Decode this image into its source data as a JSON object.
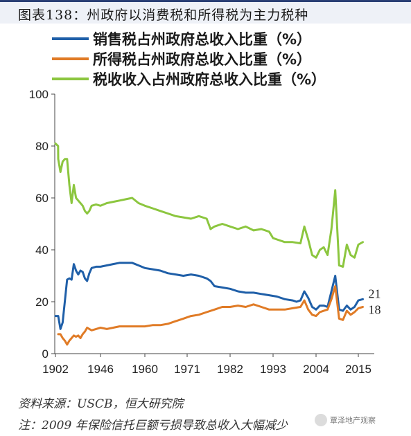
{
  "header": {
    "title": "图表138：州政府以消费税和所得税为主力税种"
  },
  "footer": {
    "source": "资料来源：USCB，恒大研究院",
    "note": "注：2009 年保险信托巨额亏损导致总收入大幅减少",
    "watermark": "覃泽地产观察"
  },
  "chart_data": {
    "type": "line",
    "title": "",
    "xlabel": "",
    "ylabel": "",
    "xlim": [
      1902,
      2017
    ],
    "ylim": [
      0,
      100
    ],
    "yticks": [
      0,
      20,
      40,
      60,
      80,
      100
    ],
    "xticks": [
      1902,
      1946,
      1960,
      1971,
      1982,
      1993,
      2004,
      2015
    ],
    "legend_position": "top-left",
    "grid": false,
    "series": [
      {
        "name": "销售税占州政府总收入比重（%）",
        "color": "#1f5fa8",
        "points": [
          [
            1902,
            14.5
          ],
          [
            1927,
            14.5
          ],
          [
            1928,
            9.5
          ],
          [
            1929,
            12
          ],
          [
            1931,
            28.5
          ],
          [
            1932,
            29
          ],
          [
            1933,
            28.5
          ],
          [
            1934,
            34.5
          ],
          [
            1935,
            32
          ],
          [
            1936,
            30.5
          ],
          [
            1937,
            32
          ],
          [
            1938,
            31.5
          ],
          [
            1939,
            29
          ],
          [
            1940,
            28
          ],
          [
            1941,
            31
          ],
          [
            1942,
            33
          ],
          [
            1944,
            33.5
          ],
          [
            1946,
            33.5
          ],
          [
            1948,
            34
          ],
          [
            1950,
            34.5
          ],
          [
            1952,
            35
          ],
          [
            1954,
            35
          ],
          [
            1956,
            35
          ],
          [
            1958,
            34
          ],
          [
            1960,
            33
          ],
          [
            1962,
            32.5
          ],
          [
            1964,
            32
          ],
          [
            1966,
            31
          ],
          [
            1968,
            30.5
          ],
          [
            1970,
            30
          ],
          [
            1972,
            30.5
          ],
          [
            1974,
            30
          ],
          [
            1976,
            29
          ],
          [
            1977,
            28
          ],
          [
            1978,
            26
          ],
          [
            1980,
            25.5
          ],
          [
            1982,
            25
          ],
          [
            1984,
            24
          ],
          [
            1986,
            23.5
          ],
          [
            1988,
            23.5
          ],
          [
            1990,
            23
          ],
          [
            1992,
            22.5
          ],
          [
            1994,
            22
          ],
          [
            1996,
            21
          ],
          [
            1998,
            20.5
          ],
          [
            1999,
            20
          ],
          [
            2000,
            20.5
          ],
          [
            2001,
            24
          ],
          [
            2002,
            21.5
          ],
          [
            2003,
            18
          ],
          [
            2004,
            17
          ],
          [
            2005,
            18.5
          ],
          [
            2006,
            18.5
          ],
          [
            2007,
            18
          ],
          [
            2008,
            24
          ],
          [
            2009,
            30
          ],
          [
            2010,
            17
          ],
          [
            2011,
            16.5
          ],
          [
            2012,
            18.5
          ],
          [
            2013,
            17
          ],
          [
            2014,
            18
          ],
          [
            2015,
            20.5
          ],
          [
            2016,
            21
          ]
        ]
      },
      {
        "name": "所得税占州政府总收入比重（%）",
        "color": "#e07b26",
        "points": [
          [
            1927,
            7.5
          ],
          [
            1928,
            7.5
          ],
          [
            1929,
            6
          ],
          [
            1930,
            5
          ],
          [
            1931,
            3.5
          ],
          [
            1932,
            5
          ],
          [
            1933,
            6
          ],
          [
            1934,
            7
          ],
          [
            1935,
            6.5
          ],
          [
            1936,
            7
          ],
          [
            1937,
            6
          ],
          [
            1938,
            7.5
          ],
          [
            1939,
            8.5
          ],
          [
            1940,
            10
          ],
          [
            1941,
            9.5
          ],
          [
            1942,
            9
          ],
          [
            1944,
            9.5
          ],
          [
            1946,
            10
          ],
          [
            1948,
            9.5
          ],
          [
            1950,
            10
          ],
          [
            1952,
            10.5
          ],
          [
            1954,
            10.5
          ],
          [
            1956,
            10.5
          ],
          [
            1958,
            10.5
          ],
          [
            1960,
            10.5
          ],
          [
            1962,
            11
          ],
          [
            1964,
            11
          ],
          [
            1966,
            11.5
          ],
          [
            1968,
            12.5
          ],
          [
            1970,
            13.5
          ],
          [
            1972,
            14.5
          ],
          [
            1974,
            15
          ],
          [
            1976,
            16
          ],
          [
            1978,
            17
          ],
          [
            1980,
            18
          ],
          [
            1982,
            18
          ],
          [
            1984,
            18.5
          ],
          [
            1986,
            18
          ],
          [
            1988,
            19
          ],
          [
            1990,
            18
          ],
          [
            1992,
            17
          ],
          [
            1994,
            17
          ],
          [
            1996,
            17
          ],
          [
            1998,
            17.5
          ],
          [
            2000,
            18
          ],
          [
            2001,
            20.5
          ],
          [
            2002,
            17
          ],
          [
            2003,
            15
          ],
          [
            2004,
            14.5
          ],
          [
            2005,
            16
          ],
          [
            2006,
            16.5
          ],
          [
            2007,
            17
          ],
          [
            2008,
            21
          ],
          [
            2009,
            26
          ],
          [
            2010,
            13.5
          ],
          [
            2011,
            13
          ],
          [
            2012,
            16.5
          ],
          [
            2013,
            15
          ],
          [
            2014,
            16
          ],
          [
            2015,
            17.5
          ],
          [
            2016,
            18
          ]
        ]
      },
      {
        "name": "税收收入占州政府总收入比重（%）",
        "color": "#8cc63f",
        "points": [
          [
            1902,
            81
          ],
          [
            1926,
            80
          ],
          [
            1927,
            75
          ],
          [
            1928,
            70
          ],
          [
            1929,
            74
          ],
          [
            1930,
            75
          ],
          [
            1931,
            75
          ],
          [
            1932,
            65
          ],
          [
            1933,
            58
          ],
          [
            1934,
            65
          ],
          [
            1935,
            60
          ],
          [
            1936,
            59
          ],
          [
            1937,
            58
          ],
          [
            1938,
            57
          ],
          [
            1939,
            55
          ],
          [
            1940,
            54
          ],
          [
            1941,
            55
          ],
          [
            1942,
            57
          ],
          [
            1944,
            57.5
          ],
          [
            1946,
            57
          ],
          [
            1948,
            58
          ],
          [
            1950,
            58.5
          ],
          [
            1952,
            59
          ],
          [
            1954,
            59.5
          ],
          [
            1956,
            60
          ],
          [
            1958,
            58
          ],
          [
            1960,
            57
          ],
          [
            1962,
            56
          ],
          [
            1964,
            55
          ],
          [
            1966,
            54
          ],
          [
            1968,
            53
          ],
          [
            1970,
            52.5
          ],
          [
            1972,
            52
          ],
          [
            1974,
            53
          ],
          [
            1976,
            52
          ],
          [
            1977,
            48
          ],
          [
            1978,
            49
          ],
          [
            1980,
            50
          ],
          [
            1982,
            49
          ],
          [
            1984,
            48
          ],
          [
            1986,
            49
          ],
          [
            1988,
            47.5
          ],
          [
            1990,
            48
          ],
          [
            1992,
            47
          ],
          [
            1993,
            44.5
          ],
          [
            1994,
            44
          ],
          [
            1996,
            43
          ],
          [
            1998,
            43
          ],
          [
            2000,
            42.5
          ],
          [
            2001,
            49
          ],
          [
            2002,
            44
          ],
          [
            2003,
            38
          ],
          [
            2004,
            37
          ],
          [
            2005,
            40
          ],
          [
            2006,
            41
          ],
          [
            2007,
            38
          ],
          [
            2008,
            48
          ],
          [
            2009,
            63
          ],
          [
            2010,
            34
          ],
          [
            2011,
            33.5
          ],
          [
            2012,
            42
          ],
          [
            2013,
            38
          ],
          [
            2014,
            37
          ],
          [
            2015,
            42
          ],
          [
            2016,
            43
          ]
        ]
      }
    ],
    "end_labels": [
      {
        "series": 0,
        "text": "21"
      },
      {
        "series": 1,
        "text": "18"
      }
    ]
  }
}
